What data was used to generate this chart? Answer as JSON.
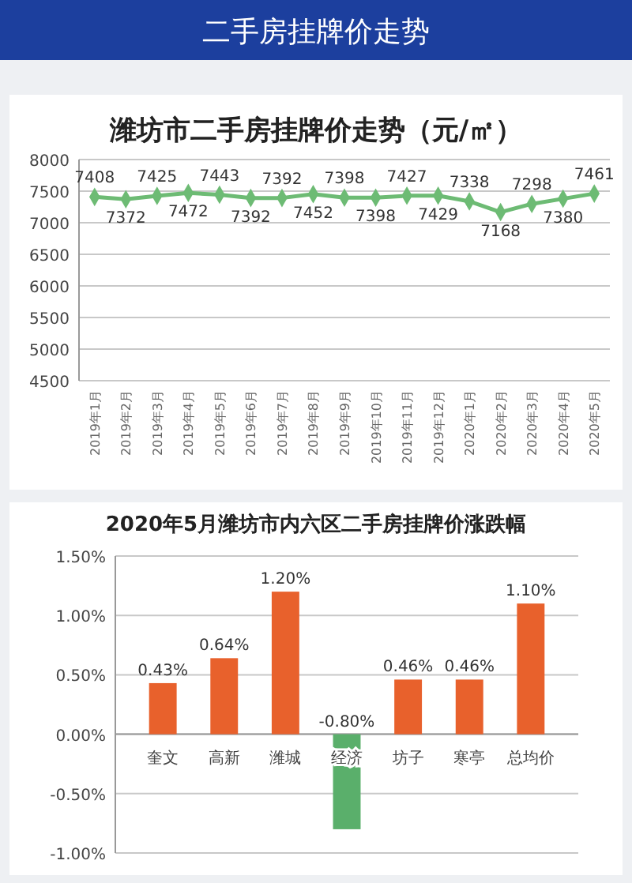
{
  "chart_data": [
    {
      "type": "line",
      "title": "潍坊市二手房挂牌价走势（元/㎡）",
      "annotations": [
        "二手房挂牌价走势"
      ],
      "categories": [
        "2019年1月",
        "2019年2月",
        "2019年3月",
        "2019年4月",
        "2019年5月",
        "2019年6月",
        "2019年7月",
        "2019年8月",
        "2019年9月",
        "2019年10月",
        "2019年11月",
        "2019年12月",
        "2020年1月",
        "2020年2月",
        "2020年3月",
        "2020年4月",
        "2020年5月"
      ],
      "series": [
        {
          "color": "#6dbb74",
          "values": [
            7408,
            7372,
            7425,
            7472,
            7443,
            7392,
            7392,
            7452,
            7398,
            7398,
            7427,
            7429,
            7338,
            7168,
            7298,
            7380,
            7461
          ]
        }
      ],
      "ylim": [
        4500,
        8000
      ],
      "yticks": [
        4500,
        5000,
        5500,
        6000,
        6500,
        7000,
        7500,
        8000
      ],
      "grid": "y",
      "marker": "diamond",
      "data_labels": true
    },
    {
      "type": "bar",
      "title": "2020年5月潍坊市内六区二手房挂牌价涨跌幅",
      "categories": [
        "奎文",
        "高新",
        "潍城",
        "经济",
        "坊子",
        "寒亭",
        "总均价"
      ],
      "values": [
        0.43,
        0.64,
        1.2,
        -0.8,
        0.46,
        0.46,
        1.1
      ],
      "colors": [
        "#e8612c",
        "#e8612c",
        "#e8612c",
        "#5aaf6b",
        "#e8612c",
        "#e8612c",
        "#e8612c"
      ],
      "value_labels": [
        "0.43%",
        "0.64%",
        "1.20%",
        "-0.80%",
        "0.46%",
        "0.46%",
        "1.10%"
      ],
      "ylim": [
        -1,
        1.5
      ],
      "yticks": [
        {
          "value": -1,
          "label": "-1.00%"
        },
        {
          "value": -0.5,
          "label": "-0.50%"
        },
        {
          "value": 0,
          "label": "0.00%"
        },
        {
          "value": 0.5,
          "label": "0.50%"
        },
        {
          "value": 1,
          "label": "1.00%"
        },
        {
          "value": 1.5,
          "label": "1.50%"
        }
      ],
      "grid": "y"
    }
  ]
}
